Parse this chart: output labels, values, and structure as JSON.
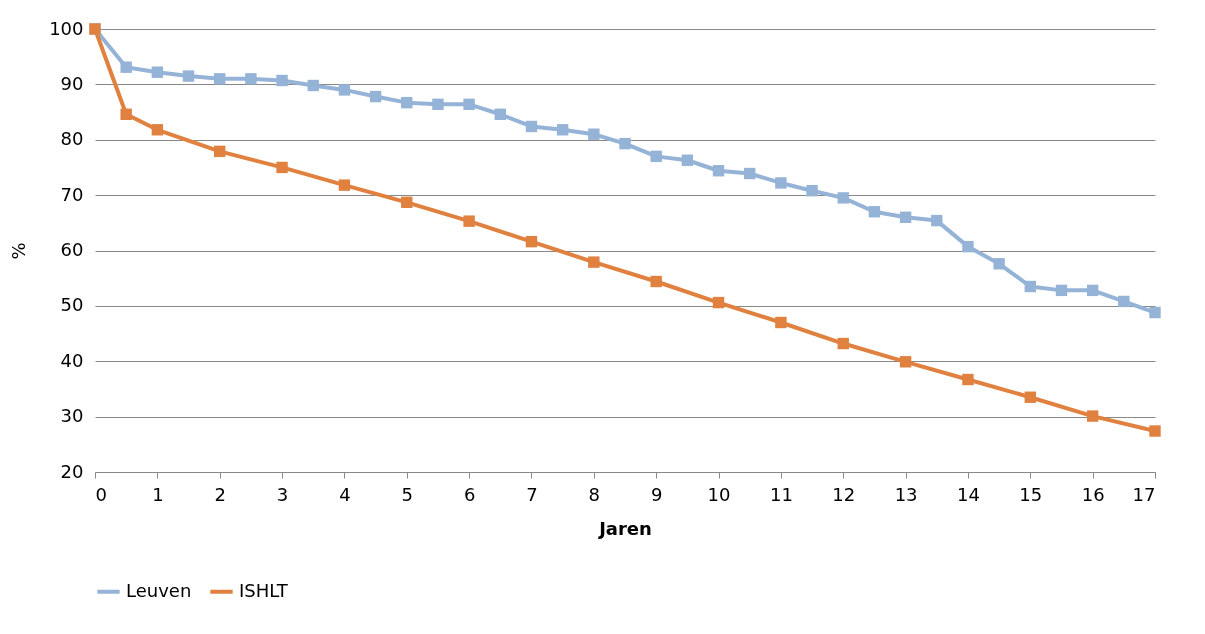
{
  "chart_data": {
    "type": "line",
    "xlabel": "Jaren",
    "ylabel": "%",
    "xlim": [
      0,
      17
    ],
    "xticks": [
      0,
      1,
      2,
      3,
      4,
      5,
      6,
      7,
      8,
      9,
      10,
      11,
      12,
      13,
      14,
      15,
      16,
      17
    ],
    "ylim": [
      20,
      100
    ],
    "yticks": [
      20,
      30,
      40,
      50,
      60,
      70,
      80,
      90,
      100
    ],
    "grid": "y",
    "legend": "bottom",
    "marker": "square",
    "line_style": "solid",
    "series": [
      {
        "name": "Leuven",
        "color": "#95b3d7",
        "x": [
          0,
          0.5,
          1,
          1.5,
          2,
          2.5,
          3,
          3.5,
          4,
          4.5,
          5,
          5.5,
          6,
          6.5,
          7,
          7.5,
          8,
          8.5,
          9,
          9.5,
          10,
          10.5,
          11,
          11.5,
          12,
          12.5,
          13,
          13.5,
          14,
          14.5,
          15,
          15.5,
          16,
          16.5,
          17
        ],
        "values": [
          100,
          93.1,
          92.2,
          91.5,
          91,
          91,
          90.7,
          89.8,
          89,
          87.8,
          86.7,
          86.4,
          86.4,
          84.6,
          82.4,
          81.8,
          81,
          79.3,
          77,
          76.3,
          74.4,
          73.9,
          72.2,
          70.8,
          69.5,
          67,
          66,
          65.4,
          60.7,
          57.6,
          53.5,
          52.8,
          52.8,
          50.8,
          48.8
        ]
      },
      {
        "name": "ISHLT",
        "color": "#e0813f",
        "x": [
          0,
          0.5,
          1,
          2,
          3,
          4,
          5,
          6,
          7,
          8,
          9,
          10,
          11,
          12,
          13,
          14,
          15,
          16,
          17
        ],
        "values": [
          100,
          84.6,
          81.8,
          77.9,
          75,
          71.8,
          68.7,
          65.3,
          61.6,
          57.9,
          54.4,
          50.6,
          47,
          43.2,
          39.9,
          36.7,
          33.5,
          30.1,
          27.4
        ]
      }
    ]
  }
}
